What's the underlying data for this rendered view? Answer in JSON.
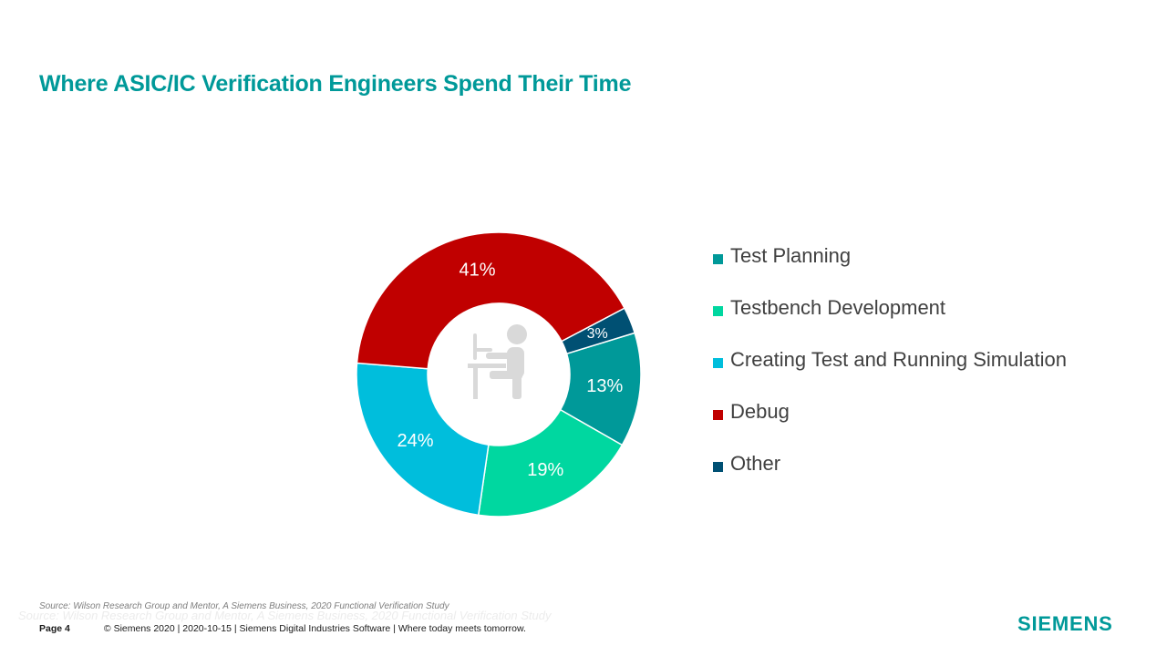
{
  "title": "Where ASIC/IC Verification Engineers Spend Their Time",
  "chart_data": {
    "type": "pie",
    "variant": "donut",
    "title": "Where ASIC/IC Verification Engineers Spend Their Time",
    "categories": [
      "Test Planning",
      "Testbench Development",
      "Creating Test and Running Simulation",
      "Debug",
      "Other"
    ],
    "values": [
      13,
      19,
      24,
      41,
      3
    ],
    "data_labels": [
      "13%",
      "19%",
      "24%",
      "41%",
      "3%"
    ],
    "colors": [
      "#009999",
      "#00d7a0",
      "#00bedc",
      "#c00000",
      "#005073"
    ],
    "legend_position": "right",
    "center_icon": "person-at-computer-icon"
  },
  "source": "Source: Wilson Research Group and Mentor, A Siemens Business, 2020 Functional Verification Study",
  "footer": {
    "page": "Page 4",
    "copyright": "© Siemens 2020 | 2020-10-15 | Siemens Digital Industries Software | Where today meets tomorrow."
  },
  "logo": "SIEMENS"
}
